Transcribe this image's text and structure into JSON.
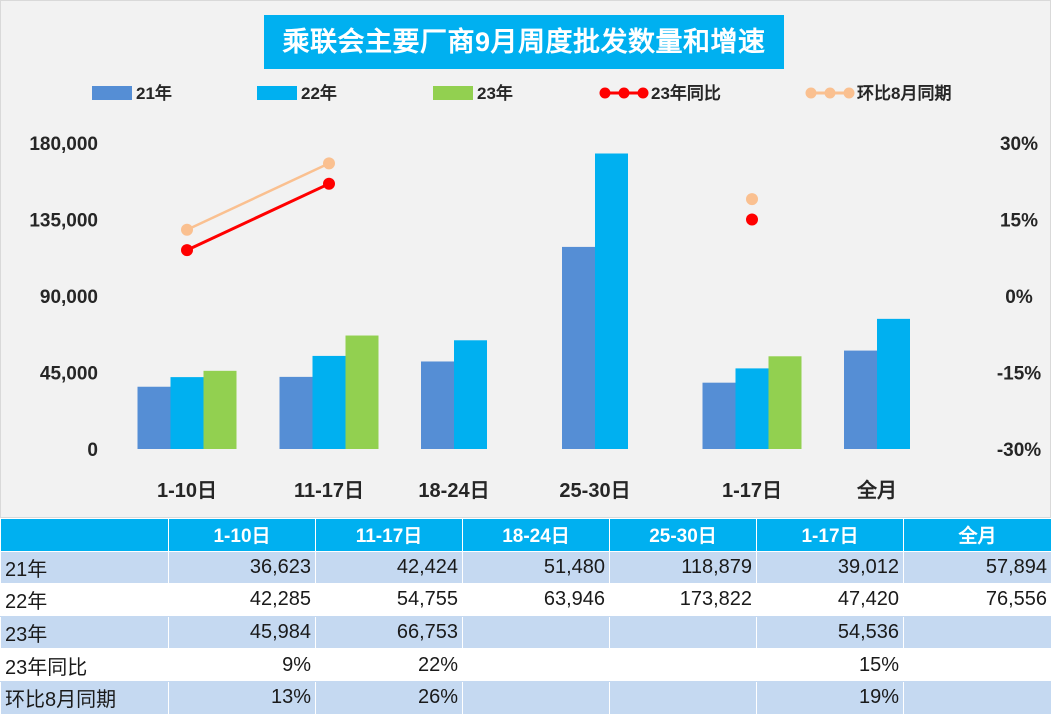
{
  "chart_data": {
    "type": "bar",
    "title": "乘联会主要厂商9月周度批发数量和增速",
    "categories": [
      "1-10日",
      "11-17日",
      "18-24日",
      "25-30日",
      "1-17日",
      "全月"
    ],
    "series": [
      {
        "name": "21年",
        "kind": "bar",
        "color": "#558ed5",
        "values": [
          36623,
          42424,
          51480,
          118879,
          39012,
          57894
        ]
      },
      {
        "name": "22年",
        "kind": "bar",
        "color": "#00b0f0",
        "values": [
          42285,
          54755,
          63946,
          173822,
          47420,
          76556
        ]
      },
      {
        "name": "23年",
        "kind": "bar",
        "color": "#92d050",
        "values": [
          45984,
          66753,
          null,
          null,
          54536,
          null
        ]
      },
      {
        "name": "23年同比",
        "kind": "line",
        "axis": "right",
        "color": "#ff0000",
        "values": [
          0.09,
          0.22,
          null,
          null,
          0.15,
          null
        ]
      },
      {
        "name": "环比8月同期",
        "kind": "line",
        "axis": "right",
        "color": "#fac090",
        "values": [
          0.13,
          0.26,
          null,
          null,
          0.19,
          null
        ]
      }
    ],
    "y_left": {
      "min": 0,
      "max": 180000,
      "ticks": [
        "0",
        "45,000",
        "90,000",
        "135,000",
        "180,000"
      ]
    },
    "y_right": {
      "min": -0.3,
      "max": 0.3,
      "ticks": [
        "-30%",
        "-15%",
        "0%",
        "15%",
        "30%"
      ]
    }
  },
  "table": {
    "headers": [
      "",
      "1-10日",
      "11-17日",
      "18-24日",
      "25-30日",
      "1-17日",
      "全月"
    ],
    "rows": [
      {
        "label": "21年",
        "cells": [
          "36,623",
          "42,424",
          "51,480",
          "118,879",
          "39,012",
          "57,894"
        ]
      },
      {
        "label": "22年",
        "cells": [
          "42,285",
          "54,755",
          "63,946",
          "173,822",
          "47,420",
          "76,556"
        ]
      },
      {
        "label": "23年",
        "cells": [
          "45,984",
          "66,753",
          "",
          "",
          "54,536",
          ""
        ]
      },
      {
        "label": "23年同比",
        "cells": [
          "9%",
          "22%",
          "",
          "",
          "15%",
          ""
        ]
      },
      {
        "label": "环比8月同期",
        "cells": [
          "13%",
          "26%",
          "",
          "",
          "19%",
          ""
        ]
      }
    ]
  }
}
